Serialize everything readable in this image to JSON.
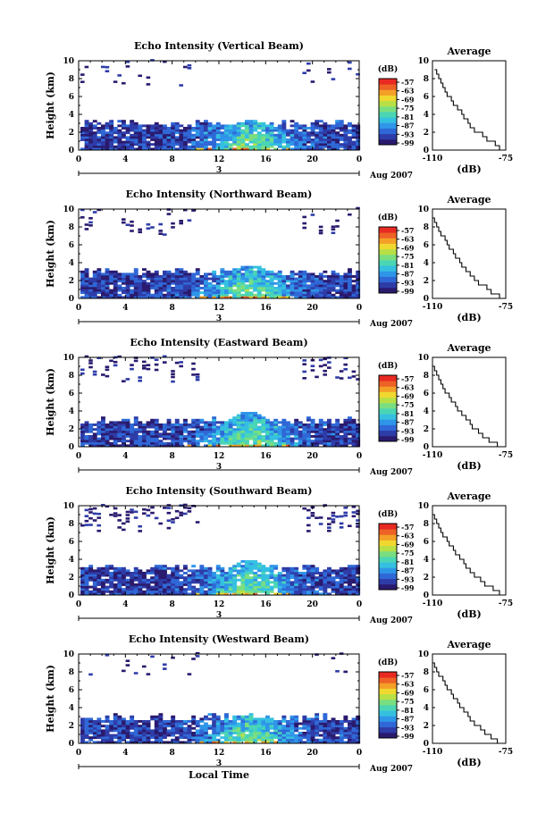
{
  "figure": {
    "x_label": "Local Time",
    "date_day": "3",
    "date_label": "Aug 2007",
    "avg_title": "Average",
    "avg_xlabel": "(dB)",
    "y_label": "Height (km)",
    "colorbar_title": "(dB)"
  },
  "chart_data": [
    {
      "type": "heatmap",
      "title": "Echo Intensity (Vertical Beam)",
      "xlabel": "Local Time",
      "ylabel": "Height (km)",
      "x_ticks": [
        "0",
        "4",
        "8",
        "12",
        "16",
        "20",
        "0"
      ],
      "y_ticks": [
        "0",
        "2",
        "4",
        "6",
        "8",
        "10"
      ],
      "xlim": [
        0,
        24
      ],
      "ylim": [
        0,
        10
      ],
      "colorbar": {
        "title": "(dB)",
        "ticks": [
          "-57",
          "-63",
          "-69",
          "-75",
          "-81",
          "-87",
          "-93",
          "-99"
        ],
        "range": [
          -99,
          -57
        ]
      },
      "layer_top_km": 3.0,
      "peak_top_km": 3.2,
      "cloud_top_fraction": 0.3,
      "average": {
        "title": "Average",
        "xlabel": "(dB)",
        "xticks": [
          "-110",
          "-75"
        ],
        "xlim": [
          -110,
          -75
        ],
        "height_km": [
          0,
          0.5,
          1,
          1.5,
          2,
          2.5,
          3,
          3.5,
          4,
          4.5,
          5,
          5.5,
          6,
          6.5,
          7,
          7.5,
          8,
          8.5,
          9
        ],
        "db": [
          -78,
          -80,
          -84,
          -86,
          -90,
          -92,
          -93,
          -95,
          -96,
          -98,
          -100,
          -101,
          -103,
          -104,
          -105,
          -106,
          -107,
          -108,
          -109
        ]
      }
    },
    {
      "type": "heatmap",
      "title": "Echo Intensity (Northward Beam)",
      "xlabel": "Local Time",
      "ylabel": "Height (km)",
      "x_ticks": [
        "0",
        "4",
        "8",
        "12",
        "16",
        "20",
        "0"
      ],
      "y_ticks": [
        "0",
        "2",
        "4",
        "6",
        "8",
        "10"
      ],
      "xlim": [
        0,
        24
      ],
      "ylim": [
        0,
        10
      ],
      "colorbar": {
        "title": "(dB)",
        "ticks": [
          "-57",
          "-63",
          "-69",
          "-75",
          "-81",
          "-87",
          "-93",
          "-99"
        ],
        "range": [
          -99,
          -57
        ]
      },
      "layer_top_km": 3.0,
      "peak_top_km": 3.6,
      "cloud_top_fraction": 0.5,
      "average": {
        "title": "Average",
        "xlabel": "(dB)",
        "xticks": [
          "-110",
          "-75"
        ],
        "xlim": [
          -110,
          -75
        ],
        "height_km": [
          0,
          0.5,
          1,
          1.5,
          2,
          2.5,
          3,
          3.5,
          4,
          4.5,
          5,
          5.5,
          6,
          6.5,
          7,
          7.5,
          8,
          8.5,
          9
        ],
        "db": [
          -78,
          -82,
          -84,
          -88,
          -90,
          -92,
          -94,
          -96,
          -97,
          -99,
          -100,
          -102,
          -103,
          -104,
          -106,
          -107,
          -108,
          -109,
          -110
        ]
      }
    },
    {
      "type": "heatmap",
      "title": "Echo Intensity (Eastward Beam)",
      "xlabel": "Local Time",
      "ylabel": "Height (km)",
      "x_ticks": [
        "0",
        "4",
        "8",
        "12",
        "16",
        "20",
        "0"
      ],
      "y_ticks": [
        "0",
        "2",
        "4",
        "6",
        "8",
        "10"
      ],
      "xlim": [
        0,
        24
      ],
      "ylim": [
        0,
        10
      ],
      "colorbar": {
        "title": "(dB)",
        "ticks": [
          "-57",
          "-63",
          "-69",
          "-75",
          "-81",
          "-87",
          "-93",
          "-99"
        ],
        "range": [
          -99,
          -57
        ]
      },
      "layer_top_km": 2.9,
      "peak_top_km": 3.8,
      "cloud_top_fraction": 0.7,
      "average": {
        "title": "Average",
        "xlabel": "(dB)",
        "xticks": [
          "-110",
          "-75"
        ],
        "xlim": [
          -110,
          -75
        ],
        "height_km": [
          0,
          0.5,
          1,
          1.5,
          2,
          2.5,
          3,
          3.5,
          4,
          4.5,
          5,
          5.5,
          6,
          6.5,
          7,
          7.5,
          8,
          8.5,
          9
        ],
        "db": [
          -79,
          -83,
          -86,
          -88,
          -91,
          -92,
          -94,
          -96,
          -98,
          -99,
          -101,
          -102,
          -104,
          -105,
          -106,
          -107,
          -108,
          -109,
          -110
        ]
      }
    },
    {
      "type": "heatmap",
      "title": "Echo Intensity (Southward Beam)",
      "xlabel": "Local Time",
      "ylabel": "Height (km)",
      "x_ticks": [
        "0",
        "4",
        "8",
        "12",
        "16",
        "20",
        "0"
      ],
      "y_ticks": [
        "0",
        "2",
        "4",
        "6",
        "8",
        "10"
      ],
      "xlim": [
        0,
        24
      ],
      "ylim": [
        0,
        10
      ],
      "colorbar": {
        "title": "(dB)",
        "ticks": [
          "-57",
          "-63",
          "-69",
          "-75",
          "-81",
          "-87",
          "-93",
          "-99"
        ],
        "range": [
          -99,
          -57
        ]
      },
      "layer_top_km": 3.0,
      "peak_top_km": 3.8,
      "cloud_top_fraction": 0.9,
      "average": {
        "title": "Average",
        "xlabel": "(dB)",
        "xticks": [
          "-110",
          "-75"
        ],
        "xlim": [
          -110,
          -75
        ],
        "height_km": [
          0,
          0.5,
          1,
          1.5,
          2,
          2.5,
          3,
          3.5,
          4,
          4.5,
          5,
          5.5,
          6,
          6.5,
          7,
          7.5,
          8,
          8.5,
          9
        ],
        "db": [
          -78,
          -81,
          -85,
          -87,
          -90,
          -92,
          -94,
          -95,
          -97,
          -99,
          -100,
          -102,
          -103,
          -105,
          -106,
          -107,
          -108,
          -109,
          -110
        ]
      }
    },
    {
      "type": "heatmap",
      "title": "Echo Intensity (Westward Beam)",
      "xlabel": "Local Time",
      "ylabel": "Height (km)",
      "x_ticks": [
        "0",
        "4",
        "8",
        "12",
        "16",
        "20",
        "0"
      ],
      "y_ticks": [
        "0",
        "2",
        "4",
        "6",
        "8",
        "10"
      ],
      "xlim": [
        0,
        24
      ],
      "ylim": [
        0,
        10
      ],
      "colorbar": {
        "title": "(dB)",
        "ticks": [
          "-57",
          "-63",
          "-69",
          "-75",
          "-81",
          "-87",
          "-93",
          "-99"
        ],
        "range": [
          -99,
          -57
        ]
      },
      "layer_top_km": 2.9,
      "peak_top_km": 3.0,
      "cloud_top_fraction": 0.2,
      "average": {
        "title": "Average",
        "xlabel": "(dB)",
        "xticks": [
          "-110",
          "-75"
        ],
        "xlim": [
          -110,
          -75
        ],
        "height_km": [
          0,
          0.5,
          1,
          1.5,
          2,
          2.5,
          3,
          3.5,
          4,
          4.5,
          5,
          5.5,
          6,
          6.5,
          7,
          7.5,
          8,
          8.5,
          9
        ],
        "db": [
          -79,
          -82,
          -85,
          -87,
          -90,
          -92,
          -93,
          -95,
          -97,
          -98,
          -100,
          -101,
          -103,
          -104,
          -105,
          -107,
          -108,
          -109,
          -110
        ]
      }
    }
  ],
  "colors": {
    "scale": [
      "#2a1a6e",
      "#2e3ca8",
      "#2f68d6",
      "#2f95e8",
      "#35c0e0",
      "#4ad6b4",
      "#7ade80",
      "#b8e046",
      "#f0d830",
      "#f4a028",
      "#ee6226",
      "#e82a22"
    ]
  }
}
